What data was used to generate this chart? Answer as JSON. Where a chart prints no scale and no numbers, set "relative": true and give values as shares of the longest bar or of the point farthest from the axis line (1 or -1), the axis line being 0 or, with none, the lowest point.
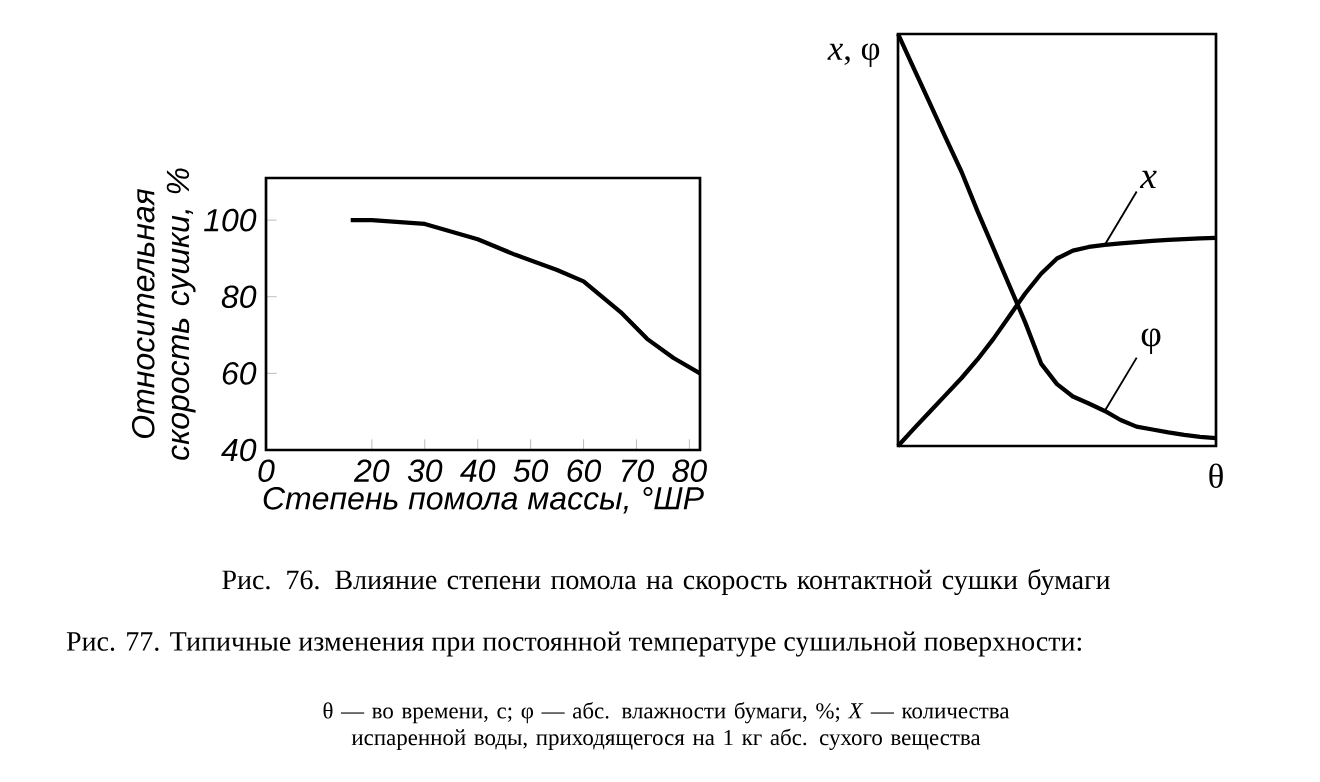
{
  "chart_data": [
    {
      "type": "line",
      "xlabel": "Степень помола массы, °ШР",
      "ylabel": "Относительная скорость сушки, %",
      "x": [
        16,
        20,
        30,
        40,
        47,
        55,
        60,
        67,
        72,
        77,
        82
      ],
      "values": [
        100,
        100,
        99,
        95,
        91,
        87,
        84,
        76,
        69,
        64,
        60
      ],
      "color": "#000000",
      "xlim": [
        0,
        82
      ],
      "xticks": [
        0,
        20,
        30,
        40,
        50,
        60,
        70,
        80
      ],
      "ylim": [
        40,
        111
      ],
      "yticks": [
        40,
        60,
        80,
        100
      ],
      "annotations": [
        "Рис. 76. Влияние степени помола на скорость контактной сушки бумаги"
      ]
    },
    {
      "type": "line",
      "relative": true,
      "xlabel": "θ",
      "ylabel": "*x*, φ",
      "categories": [
        null,
        null,
        null,
        null,
        null,
        null,
        null,
        null,
        null,
        null,
        null,
        null,
        null,
        null,
        null,
        null,
        null,
        null,
        null,
        null,
        null
      ],
      "series": [
        {
          "name": "*x*",
          "color": "#000000",
          "values": [
            0,
            0.042,
            0.083,
            0.124,
            0.165,
            0.21,
            0.26,
            0.315,
            0.37,
            0.418,
            0.455,
            0.474,
            0.483,
            0.488,
            0.492,
            0.495,
            0.498,
            0.5,
            0.502,
            0.504,
            0.505
          ]
        },
        {
          "name": "φ",
          "color": "#000000",
          "values": [
            1,
            0.916,
            0.832,
            0.748,
            0.665,
            0.57,
            0.48,
            0.39,
            0.3,
            0.2,
            0.15,
            0.12,
            0.103,
            0.085,
            0.063,
            0.047,
            0.04,
            0.033,
            0.027,
            0.022,
            0.019
          ]
        }
      ],
      "annotations": [
        "Рис. 77. Типичные изменения при постоянной температуре сушильной поверхности:",
        "θ — во времени, с; φ — абс. влажности бумаги, %; *X* — количества испаренной воды, приходящегося на 1 кг абс. сухого вещества"
      ]
    }
  ]
}
